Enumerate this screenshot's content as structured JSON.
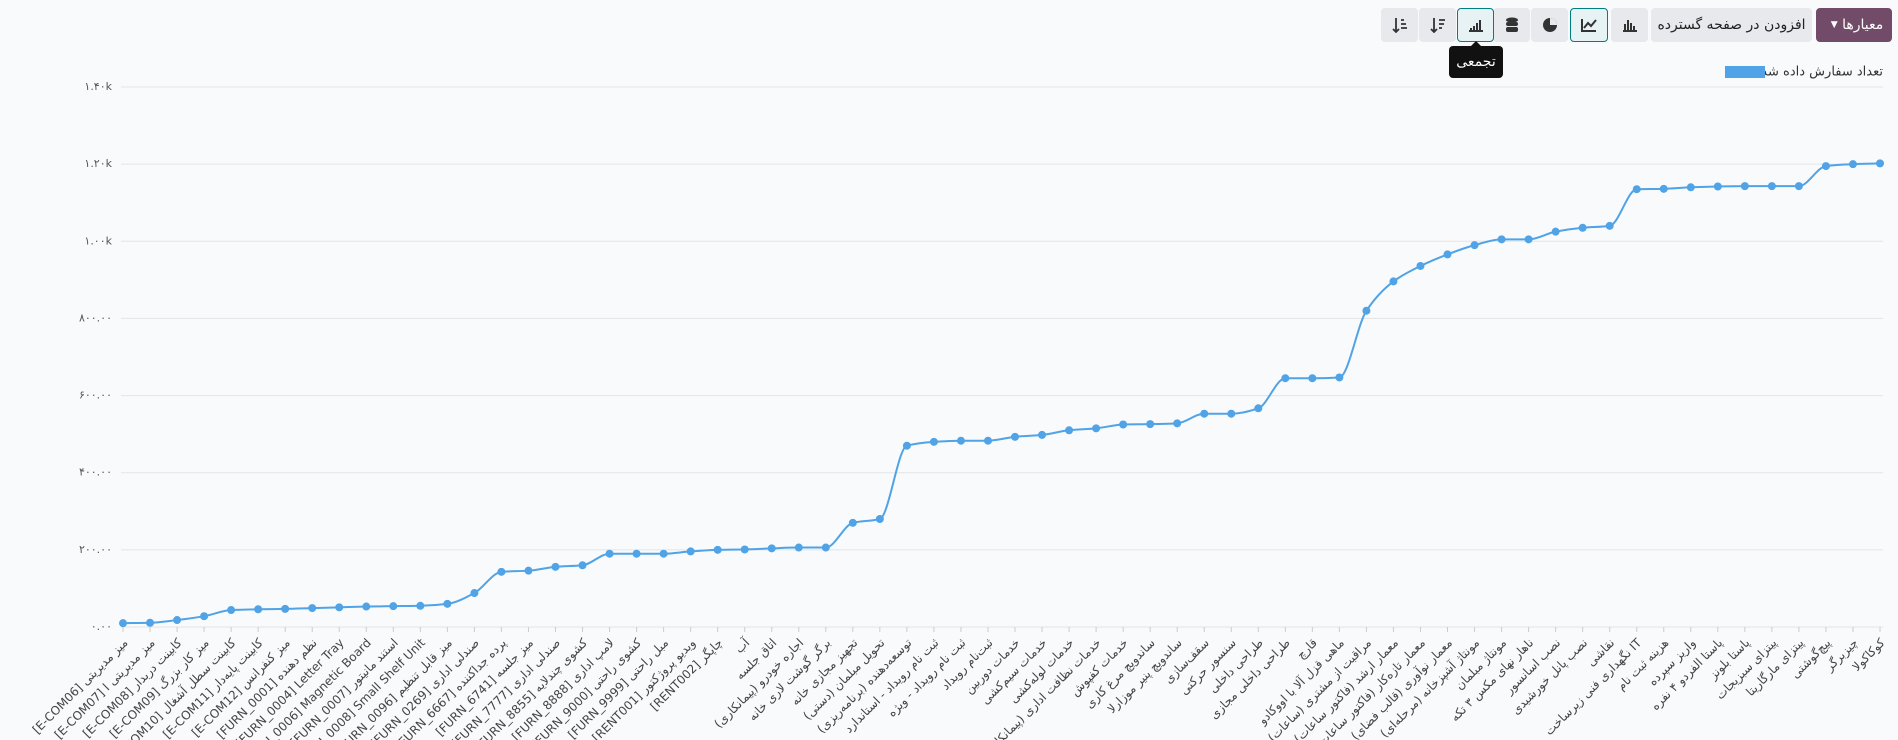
{
  "toolbar": {
    "filters": "معیارها",
    "insert": "افزودن در صفحه گسترده",
    "tooltip": "تجمعی"
  },
  "chart_data": {
    "type": "line",
    "cumulative": true,
    "legend": "top-right",
    "grid": true,
    "categories": [
      "[E-COM06] میز مدیریتی",
      "[E-COM07] میز مدیریتی ا",
      "[E-COM08] کابینت دربدار",
      "[E-COM09] میز کار بزرگ",
      "[E-COM10] کابینت سطل آشغال",
      "[E-COM11] کابینت پایه‌دار",
      "[E-COM12] میز کنفرانس",
      "[FURN_0001] نظم دهنده",
      "[FURN_0004] Letter Tray",
      "[FURN_0006] Magnetic Board",
      "[FURN_0007] استند مانیتور",
      "[FURN_0008] Small Shelf Unit",
      "[FURN_0096] میز قابل تنظیم",
      "[FURN_0269] صندلی اداری",
      "[FURN_6667] پرده جداکننده",
      "[FURN_6741] میز جلسه",
      "[FURN_7777] صندلی اداری",
      "[FURN_8855] کشوی چندلایه",
      "[FURN_8888] لامپ اداری",
      "[FURN_9000] کشوی راحتی",
      "[FURN_9999] مبل راحتی",
      "[RENT001] ویدیو پروژکتور",
      "[RENT002] چاپگر",
      "آب",
      "اتاق جلسه",
      "اجاره خودرو (پیمانکاری)",
      "برگر گوشت لاری خانه",
      "تجهیز مجازی خانه",
      "تحویل مبلمان (دستی)",
      "توسعه‌دهنده (برنامه‌ریزی)",
      "ثبت نام رویداد - استاندارد",
      "ثبت نام رویداد - ویژه",
      "ثبت‌نام رویداد",
      "خدمات دوربین",
      "خدمات سیم‌کشی",
      "خدمات لوله‌کشی",
      "خدمات نظافت اداری (پیمانکاری)",
      "خدمات کفپوش",
      "ساندویچ مرغ کاری",
      "ساندویچ پنیر موزارلا",
      "سقف‌سازی",
      "سنسور حرکتی",
      "طراحی داخلی",
      "طراحی داخلی مجازی",
      "قارچ",
      "ماهی قزل آلا با اووکادو",
      "مراقبت از مشتری (ساعات)",
      "معمار ارشد (فاکتور ساعات)",
      "معمار تازه‌کار (فاکتور ساعات)",
      "معمار نوآوری (قالب فضای)",
      "مونتاژ آشپزخانه (مرحله‌ای)",
      "مونتاژ مبلمان",
      "ناهار نهای مکس ۳ تکه",
      "نصب اسانسور",
      "نصب پانل خورشیدی",
      "نقاشی",
      "نگهداری فنی زیرساخت IT",
      "هزینه ثبت نام",
      "واریز سپرده",
      "پاستا الفردو ۴ نفره",
      "پاستا بلونز",
      "پیتزای سبزیجات",
      "پیتزای مارگاریتا",
      "پیچ‌گوشتی",
      "چیزبرگر",
      "کوکاکولا"
    ],
    "series": [
      {
        "name": "تعداد سفارش داده شده",
        "color": "#4fa3e6",
        "values": [
          10,
          11,
          18,
          28,
          44,
          46,
          47,
          49,
          51,
          53,
          54,
          55,
          60,
          88,
          143,
          146,
          156,
          160,
          190,
          190,
          190,
          196,
          200,
          201,
          204,
          206,
          206,
          270,
          280,
          470,
          480,
          483,
          483,
          493,
          498,
          510,
          515,
          525,
          526,
          528,
          553,
          553,
          567,
          645,
          645,
          647,
          820,
          896,
          936,
          966,
          990,
          1005,
          1005,
          1025,
          1035,
          1040,
          1135,
          1136,
          1140,
          1142,
          1143,
          1143,
          1143,
          1195,
          1200,
          1202
        ]
      }
    ],
    "ylim": [
      0,
      1400
    ],
    "yticks": [
      {
        "value": 0,
        "label": "۰.۰۰"
      },
      {
        "value": 200,
        "label": "۲۰۰.۰۰"
      },
      {
        "value": 400,
        "label": "۴۰۰.۰۰"
      },
      {
        "value": 600,
        "label": "۶۰۰.۰۰"
      },
      {
        "value": 800,
        "label": "۸۰۰.۰۰"
      },
      {
        "value": 1000,
        "label": "۱.۰۰k"
      },
      {
        "value": 1200,
        "label": "۱.۲۰k"
      },
      {
        "value": 1400,
        "label": "۱.۴۰k"
      }
    ]
  }
}
